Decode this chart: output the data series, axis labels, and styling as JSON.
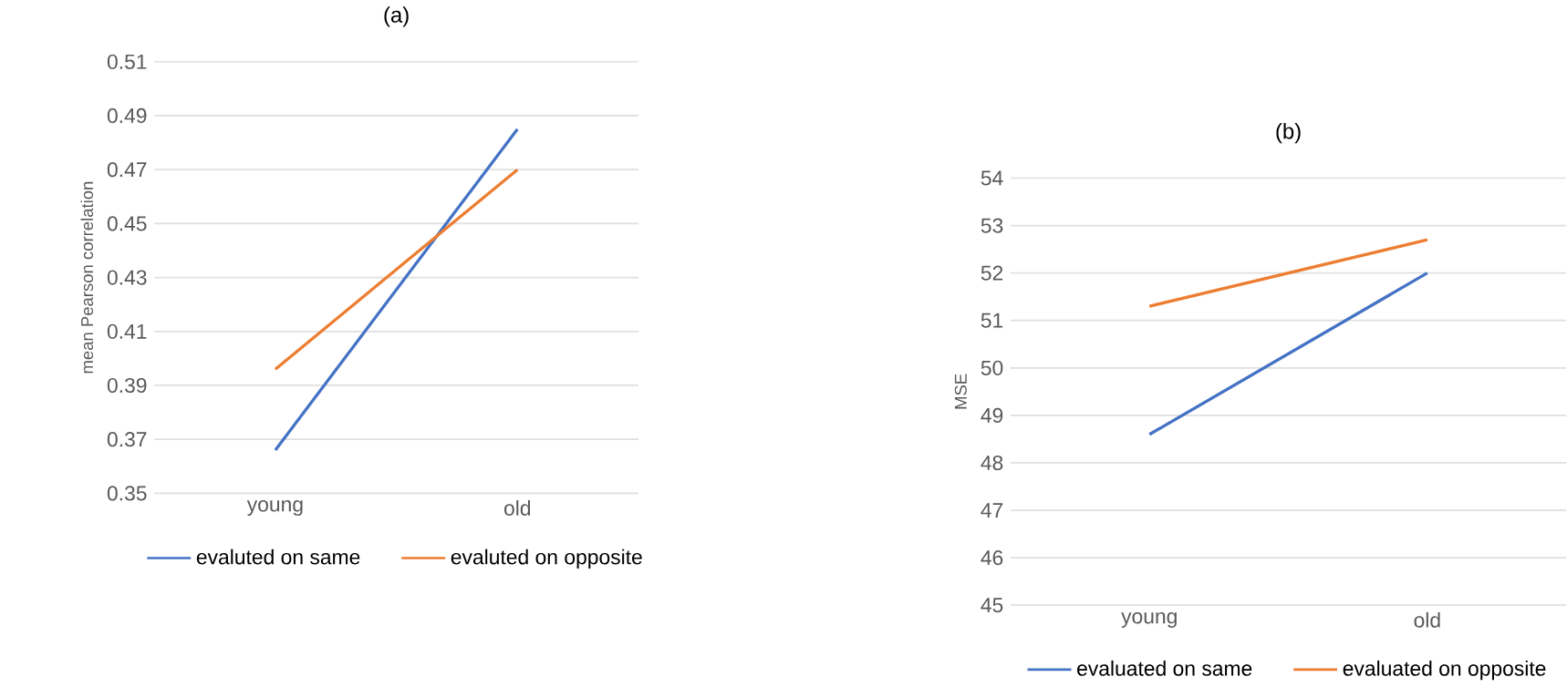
{
  "chart_data": [
    {
      "type": "line",
      "title": "(a)",
      "ylabel": "mean Pearson correlation",
      "categories": [
        "young",
        "old"
      ],
      "ylim": [
        0.35,
        0.51
      ],
      "yticks": [
        0.35,
        0.37,
        0.39,
        0.41,
        0.43,
        0.45,
        0.47,
        0.49,
        0.51
      ],
      "grid": "y",
      "legend": "bottom",
      "series": [
        {
          "name": "evaluted on same",
          "color": "#4472c4",
          "values": [
            0.366,
            0.485
          ]
        },
        {
          "name": "evaluted on opposite",
          "color": "#ed7d31",
          "values": [
            0.396,
            0.47
          ]
        }
      ]
    },
    {
      "type": "line",
      "title": "(b)",
      "ylabel": "MSE",
      "categories": [
        "young",
        "old"
      ],
      "ylim": [
        45,
        54
      ],
      "yticks": [
        45,
        46,
        47,
        48,
        49,
        50,
        51,
        52,
        53,
        54
      ],
      "grid": "y",
      "legend": "bottom",
      "series": [
        {
          "name": "evaluated on same",
          "color": "#4472c4",
          "values": [
            48.6,
            52.0
          ]
        },
        {
          "name": "evaluated on opposite",
          "color": "#ed7d31",
          "values": [
            51.3,
            52.7
          ]
        }
      ]
    }
  ]
}
